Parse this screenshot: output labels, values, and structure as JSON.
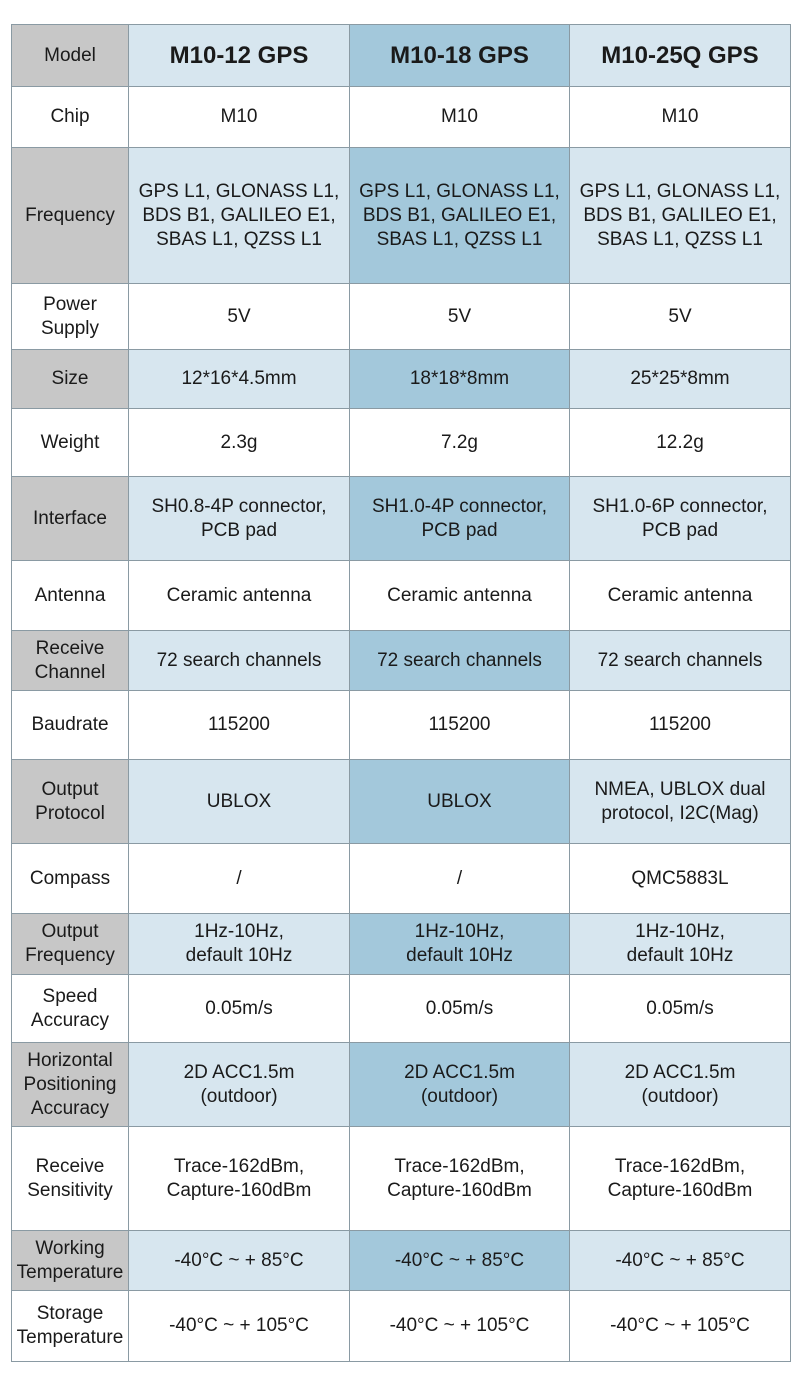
{
  "columns": [
    "M10-12 GPS",
    "M10-18 GPS",
    "M10-25Q GPS"
  ],
  "header_label": "Model",
  "rows": [
    {
      "label": "Chip",
      "values": [
        "M10",
        "M10",
        "M10"
      ]
    },
    {
      "label": "Frequency",
      "values": [
        "GPS L1, GLONASS L1,\nBDS B1, GALILEO E1,\nSBAS L1, QZSS L1",
        "GPS L1, GLONASS L1,\nBDS B1, GALILEO E1,\nSBAS L1, QZSS L1",
        "GPS L1, GLONASS L1,\nBDS B1, GALILEO E1,\nSBAS L1, QZSS L1"
      ]
    },
    {
      "label": "Power\nSupply",
      "values": [
        "5V",
        "5V",
        "5V"
      ]
    },
    {
      "label": "Size",
      "values": [
        "12*16*4.5mm",
        "18*18*8mm",
        "25*25*8mm"
      ]
    },
    {
      "label": "Weight",
      "values": [
        "2.3g",
        "7.2g",
        "12.2g"
      ]
    },
    {
      "label": "Interface",
      "values": [
        "SH0.8-4P connector,\nPCB pad",
        "SH1.0-4P connector,\nPCB pad",
        "SH1.0-6P connector,\nPCB pad"
      ]
    },
    {
      "label": "Antenna",
      "values": [
        "Ceramic antenna",
        "Ceramic antenna",
        "Ceramic antenna"
      ]
    },
    {
      "label": "Receive\nChannel",
      "values": [
        "72 search channels",
        "72 search channels",
        "72 search channels"
      ]
    },
    {
      "label": "Baudrate",
      "values": [
        "115200",
        "115200",
        "115200"
      ]
    },
    {
      "label": "Output\nProtocol",
      "values": [
        "UBLOX",
        "UBLOX",
        "NMEA, UBLOX dual\nprotocol, I2C(Mag)"
      ]
    },
    {
      "label": "Compass",
      "values": [
        "/",
        "/",
        "QMC5883L"
      ]
    },
    {
      "label": "Output\nFrequency",
      "values": [
        "1Hz-10Hz,\ndefault 10Hz",
        "1Hz-10Hz,\ndefault 10Hz",
        "1Hz-10Hz,\ndefault 10Hz"
      ]
    },
    {
      "label": "Speed\nAccuracy",
      "values": [
        "0.05m/s",
        "0.05m/s",
        "0.05m/s"
      ]
    },
    {
      "label": "Horizontal\nPositioning\nAccuracy",
      "values": [
        "2D ACC1.5m\n(outdoor)",
        "2D ACC1.5m\n(outdoor)",
        "2D ACC1.5m\n(outdoor)"
      ]
    },
    {
      "label": "Receive\nSensitivity",
      "values": [
        "Trace-162dBm,\nCapture-160dBm",
        "Trace-162dBm,\nCapture-160dBm",
        "Trace-162dBm,\nCapture-160dBm"
      ]
    },
    {
      "label": "Working\nTemperature",
      "values": [
        "-40°C ~ + 85°C",
        "-40°C ~ + 85°C",
        "-40°C ~ + 85°C"
      ]
    },
    {
      "label": "Storage\nTemperature",
      "values": [
        "-40°C ~ + 105°C",
        "-40°C ~ + 105°C",
        "-40°C ~ + 105°C"
      ]
    }
  ]
}
